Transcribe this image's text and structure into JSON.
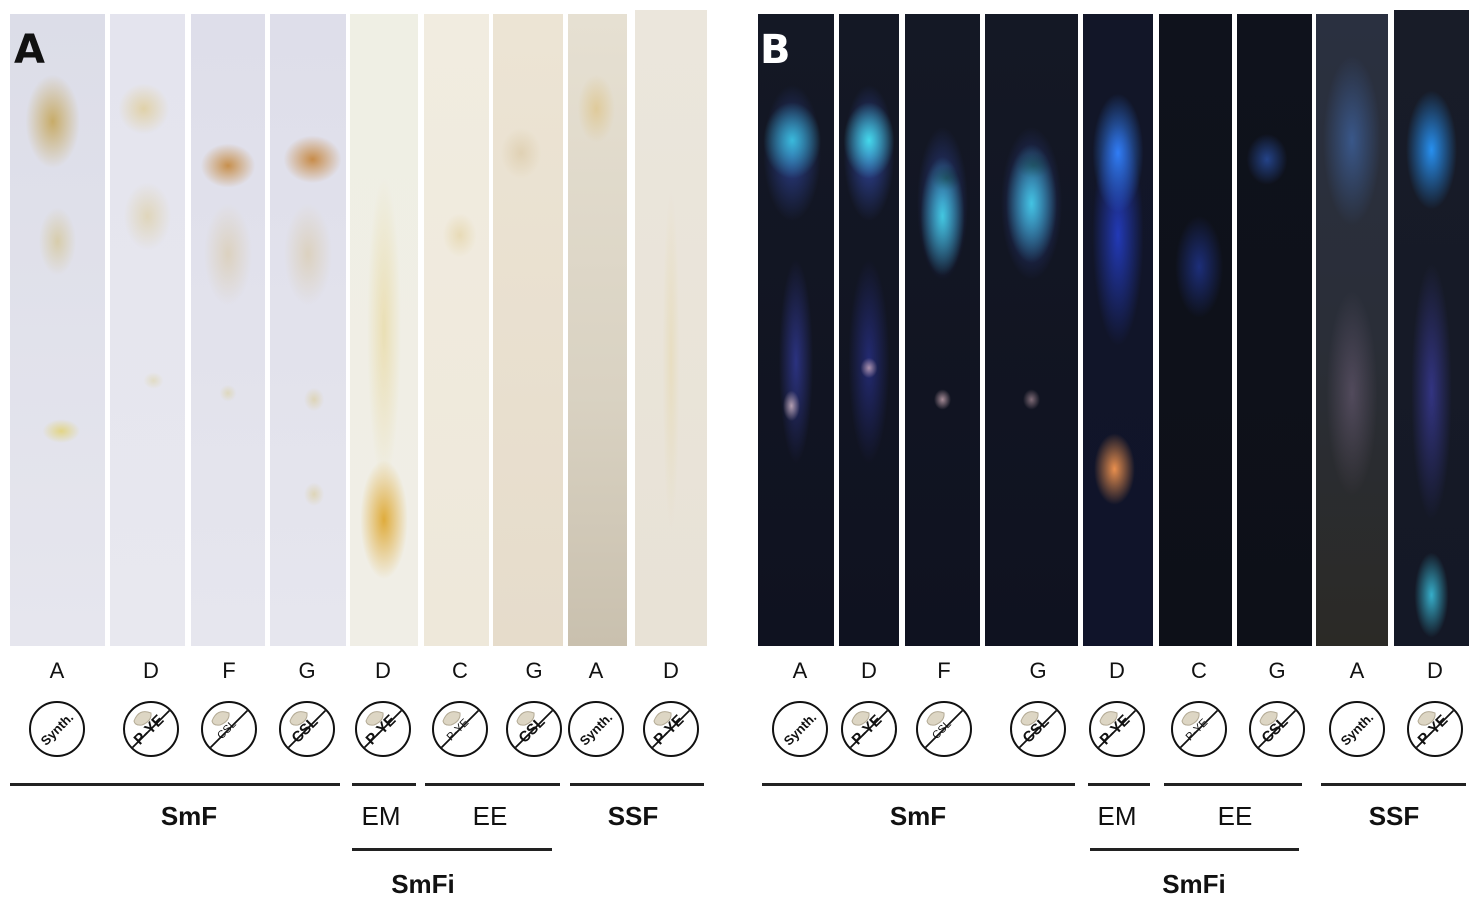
{
  "panels": [
    {
      "label": "A",
      "lanes": [
        "A",
        "D",
        "F",
        "G",
        "D",
        "C",
        "G",
        "A",
        "D"
      ],
      "media": [
        "Synth.",
        "P-YE",
        "CSL",
        "CSL",
        "P-YE",
        "P-YE",
        "CSL",
        "Synth.",
        "P-YE"
      ],
      "groups": {
        "smf": "SmF",
        "em": "EM",
        "ee": "EE",
        "ssf": "SSF",
        "smfi": "SmFi"
      }
    },
    {
      "label": "B",
      "lanes": [
        "A",
        "D",
        "F",
        "G",
        "D",
        "C",
        "G",
        "A",
        "D"
      ],
      "media": [
        "Synth.",
        "P-YE",
        "CSL",
        "CSL",
        "P-YE",
        "P-YE",
        "CSL",
        "Synth.",
        "P-YE"
      ],
      "groups": {
        "smf": "SmF",
        "em": "EM",
        "ee": "EE",
        "ssf": "SSF",
        "smfi": "SmFi"
      }
    }
  ]
}
